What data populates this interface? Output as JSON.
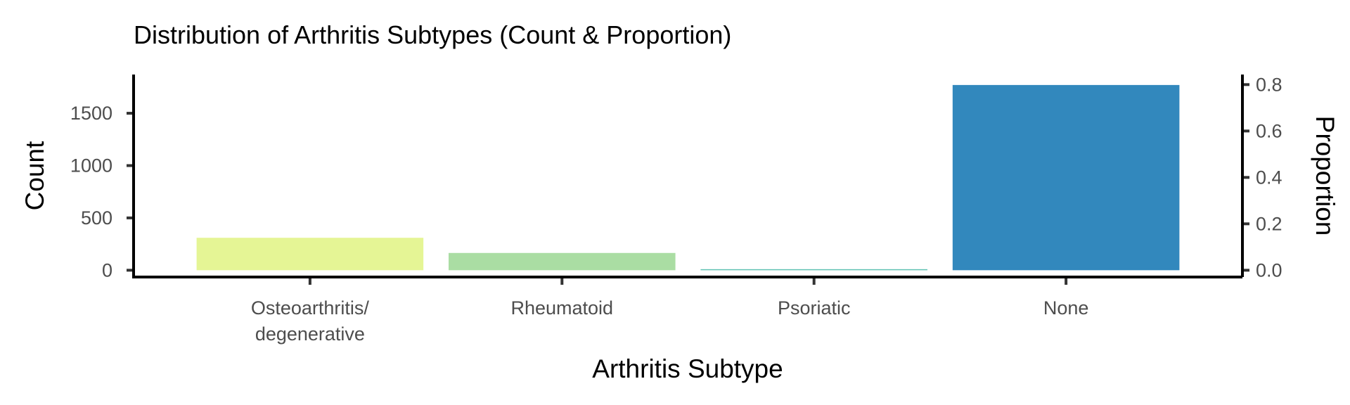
{
  "chart_data": {
    "type": "bar",
    "title": "Distribution of Arthritis Subtypes (Count & Proportion)",
    "xlabel": "Arthritis Subtype",
    "ylabel": "Count",
    "y2label": "Proportion",
    "categories": [
      [
        "Osteoarthritis/",
        "degenerative"
      ],
      [
        "Rheumatoid"
      ],
      [
        "Psoriatic"
      ],
      [
        "None"
      ]
    ],
    "values": [
      310,
      165,
      10,
      1770
    ],
    "colors": [
      "#e5f595",
      "#aadda3",
      "#5fc2b3",
      "#3288bd"
    ],
    "ylim": [
      -65,
      1870
    ],
    "yticks": [
      0,
      500,
      1000,
      1500
    ],
    "y2ticks": [
      "0.0",
      "0.2",
      "0.4",
      "0.6",
      "0.8"
    ],
    "y2_values": [
      0,
      0.2,
      0.4,
      0.6,
      0.8
    ],
    "y2_per_count": 0.000451,
    "grid": false,
    "legend": "none"
  }
}
